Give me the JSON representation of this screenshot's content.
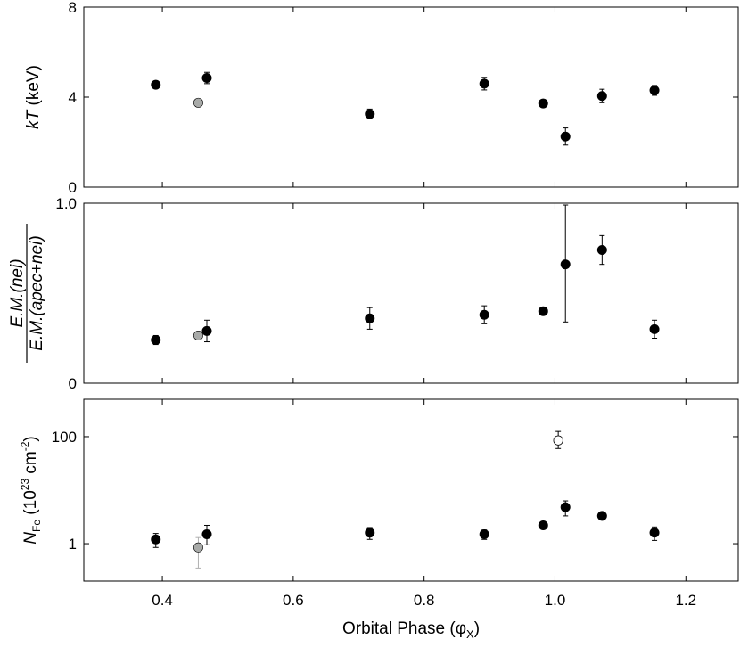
{
  "chart_data": [
    {
      "type": "scatter",
      "panel": "top",
      "ylabel": "kT (keV)",
      "ylabel_italic": "kT",
      "ylabel_rest": " (keV)",
      "ylim": [
        0,
        8
      ],
      "yscale": "linear",
      "yticks": [
        0,
        4,
        8
      ],
      "ytick_labels": [
        "0",
        "4",
        "8"
      ],
      "series": [
        {
          "marker": "filled-black",
          "points": [
            {
              "x": 0.39,
              "y": 4.55,
              "err_lo": 0.12,
              "err_hi": 0.12
            },
            {
              "x": 0.468,
              "y": 4.85,
              "err_lo": 0.25,
              "err_hi": 0.25
            },
            {
              "x": 0.717,
              "y": 3.25,
              "err_lo": 0.22,
              "err_hi": 0.22
            },
            {
              "x": 0.892,
              "y": 4.6,
              "err_lo": 0.28,
              "err_hi": 0.28
            },
            {
              "x": 0.982,
              "y": 3.72,
              "err_lo": 0.1,
              "err_hi": 0.1
            },
            {
              "x": 1.016,
              "y": 2.25,
              "err_lo": 0.38,
              "err_hi": 0.38
            },
            {
              "x": 1.072,
              "y": 4.05,
              "err_lo": 0.3,
              "err_hi": 0.3
            },
            {
              "x": 1.152,
              "y": 4.3,
              "err_lo": 0.22,
              "err_hi": 0.22
            }
          ]
        },
        {
          "marker": "filled-gray",
          "points": [
            {
              "x": 0.455,
              "y": 3.75,
              "err_lo": 0.05,
              "err_hi": 0.05
            }
          ]
        }
      ]
    },
    {
      "type": "scatter",
      "panel": "middle",
      "ylabel_numerator": "E.M.(nei)",
      "ylabel_denominator": "E.M.(apec+nei)",
      "ylim": [
        0,
        1.0
      ],
      "yscale": "linear",
      "yticks": [
        0,
        1
      ],
      "ytick_labels": [
        "0",
        "1.0"
      ],
      "series": [
        {
          "marker": "filled-black",
          "points": [
            {
              "x": 0.39,
              "y": 0.24,
              "err_lo": 0.025,
              "err_hi": 0.025
            },
            {
              "x": 0.468,
              "y": 0.29,
              "err_lo": 0.06,
              "err_hi": 0.06
            },
            {
              "x": 0.717,
              "y": 0.36,
              "err_lo": 0.06,
              "err_hi": 0.06
            },
            {
              "x": 0.892,
              "y": 0.38,
              "err_lo": 0.05,
              "err_hi": 0.05
            },
            {
              "x": 0.982,
              "y": 0.4,
              "err_lo": 0.01,
              "err_hi": 0.01
            },
            {
              "x": 1.016,
              "y": 0.66,
              "err_lo": 0.32,
              "err_hi": 0.33
            },
            {
              "x": 1.072,
              "y": 0.74,
              "err_lo": 0.08,
              "err_hi": 0.08
            },
            {
              "x": 1.152,
              "y": 0.3,
              "err_lo": 0.05,
              "err_hi": 0.05
            }
          ]
        },
        {
          "marker": "filled-gray",
          "points": [
            {
              "x": 0.455,
              "y": 0.265,
              "err_lo": 0.01,
              "err_hi": 0.01
            }
          ]
        }
      ]
    },
    {
      "type": "scatter",
      "panel": "bottom",
      "ylabel_base": "N",
      "ylabel_sub": "Fe",
      "ylabel_mid": " (10",
      "ylabel_sup1": "23",
      "ylabel_unit": " cm",
      "ylabel_sup2": "-2",
      "ylabel_end": ")",
      "ylim": [
        0.2,
        500
      ],
      "yscale": "log",
      "yticks": [
        1,
        100
      ],
      "ytick_labels": [
        "1",
        "100"
      ],
      "series": [
        {
          "marker": "filled-black",
          "points": [
            {
              "x": 0.39,
              "y": 1.2,
              "err_lo": 0.35,
              "err_hi": 0.35
            },
            {
              "x": 0.468,
              "y": 1.5,
              "err_lo": 0.55,
              "err_hi": 0.7
            },
            {
              "x": 0.717,
              "y": 1.6,
              "err_lo": 0.4,
              "err_hi": 0.4
            },
            {
              "x": 0.892,
              "y": 1.5,
              "err_lo": 0.3,
              "err_hi": 0.3
            },
            {
              "x": 0.982,
              "y": 2.2,
              "err_lo": 0.15,
              "err_hi": 0.15
            },
            {
              "x": 1.016,
              "y": 4.8,
              "err_lo": 1.5,
              "err_hi": 1.5
            },
            {
              "x": 1.072,
              "y": 3.3,
              "err_lo": 0.2,
              "err_hi": 0.2
            },
            {
              "x": 1.152,
              "y": 1.6,
              "err_lo": 0.45,
              "err_hi": 0.45
            }
          ]
        },
        {
          "marker": "filled-gray",
          "points": [
            {
              "x": 0.455,
              "y": 0.85,
              "err_lo": 0.5,
              "err_hi": 0.45
            }
          ]
        },
        {
          "marker": "open",
          "points": [
            {
              "x": 1.005,
              "y": 85,
              "err_lo": 25,
              "err_hi": 40
            }
          ]
        }
      ]
    }
  ],
  "xaxis": {
    "xlabel_main": "Orbital Phase (φ",
    "xlabel_sub": "X",
    "xlabel_end": ")",
    "xlim": [
      0.28,
      1.28
    ],
    "xticks": [
      0.4,
      0.6,
      0.8,
      1.0,
      1.2
    ],
    "xtick_labels": [
      "0.4",
      "0.6",
      "0.8",
      "1.0",
      "1.2"
    ]
  },
  "colors": {
    "filled-black": "#000000",
    "filled-gray": "#a8aaa8",
    "open": "#ffffff",
    "gray_errorbar": "#b0b0b0"
  }
}
